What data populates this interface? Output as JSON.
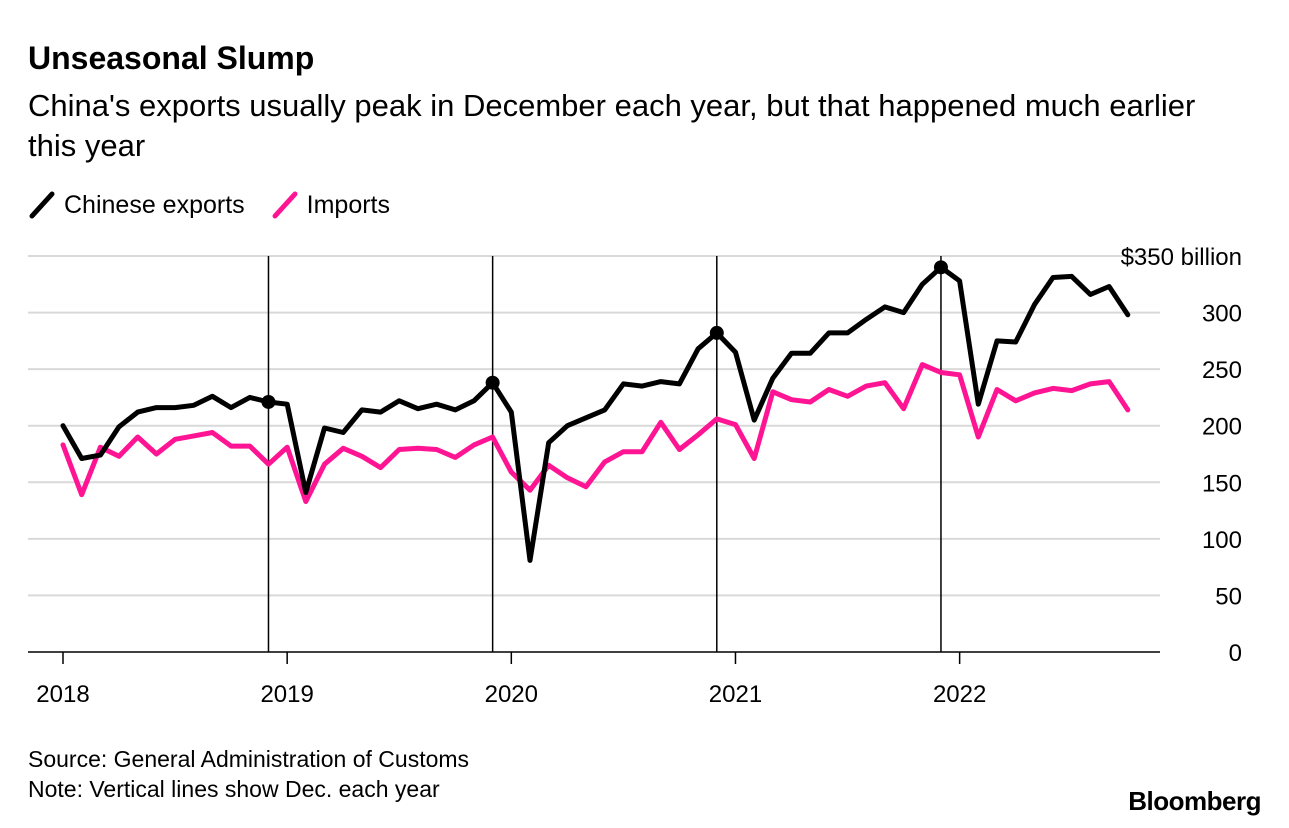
{
  "header": {
    "title": "Unseasonal Slump",
    "subtitle": "China's exports usually peak in December each year, but that happened much earlier this year"
  },
  "legend": [
    {
      "label": "Chinese exports",
      "color": "#000000"
    },
    {
      "label": "Imports",
      "color": "#ff1493"
    }
  ],
  "footer": {
    "source": "Source: General Administration of Customs",
    "note": "Note: Vertical lines show Dec. each year",
    "brand": "Bloomberg"
  },
  "chart_data": {
    "type": "line",
    "title": "Unseasonal Slump",
    "xlabel": "",
    "ylabel": "",
    "y_unit_label": "$350 billion",
    "ylim": [
      0,
      350
    ],
    "yticks": [
      0,
      50,
      100,
      150,
      200,
      250,
      300,
      350
    ],
    "xtick_labels": [
      "2018",
      "2019",
      "2020",
      "2021",
      "2022"
    ],
    "x_start": "2018-01",
    "x_frequency": "monthly",
    "vertical_lines_at_month_index": [
      11,
      23,
      35,
      47
    ],
    "highlight_points": [
      {
        "series": "Chinese exports",
        "month_index": 11
      },
      {
        "series": "Chinese exports",
        "month_index": 23
      },
      {
        "series": "Chinese exports",
        "month_index": 35
      },
      {
        "series": "Chinese exports",
        "month_index": 47
      }
    ],
    "series": [
      {
        "name": "Chinese exports",
        "color": "#000000",
        "values": [
          200,
          171,
          174,
          199,
          212,
          216,
          216,
          218,
          226,
          216,
          225,
          221,
          219,
          141,
          198,
          194,
          214,
          212,
          222,
          215,
          219,
          214,
          222,
          238,
          212,
          81,
          185,
          200,
          207,
          214,
          237,
          235,
          239,
          237,
          268,
          282,
          265,
          205,
          242,
          264,
          264,
          282,
          282,
          294,
          305,
          300,
          325,
          340,
          328,
          219,
          275,
          274,
          307,
          331,
          332,
          316,
          323,
          298
        ]
      },
      {
        "name": "Imports",
        "color": "#ff1493",
        "values": [
          183,
          139,
          181,
          173,
          190,
          175,
          188,
          191,
          194,
          182,
          182,
          166,
          181,
          133,
          166,
          180,
          173,
          163,
          179,
          180,
          179,
          172,
          183,
          190,
          159,
          143,
          165,
          154,
          146,
          168,
          177,
          177,
          203,
          179,
          192,
          206,
          201,
          171,
          230,
          223,
          221,
          232,
          226,
          235,
          238,
          215,
          254,
          247,
          245,
          190,
          232,
          222,
          229,
          233,
          231,
          237,
          239,
          214
        ]
      }
    ]
  }
}
